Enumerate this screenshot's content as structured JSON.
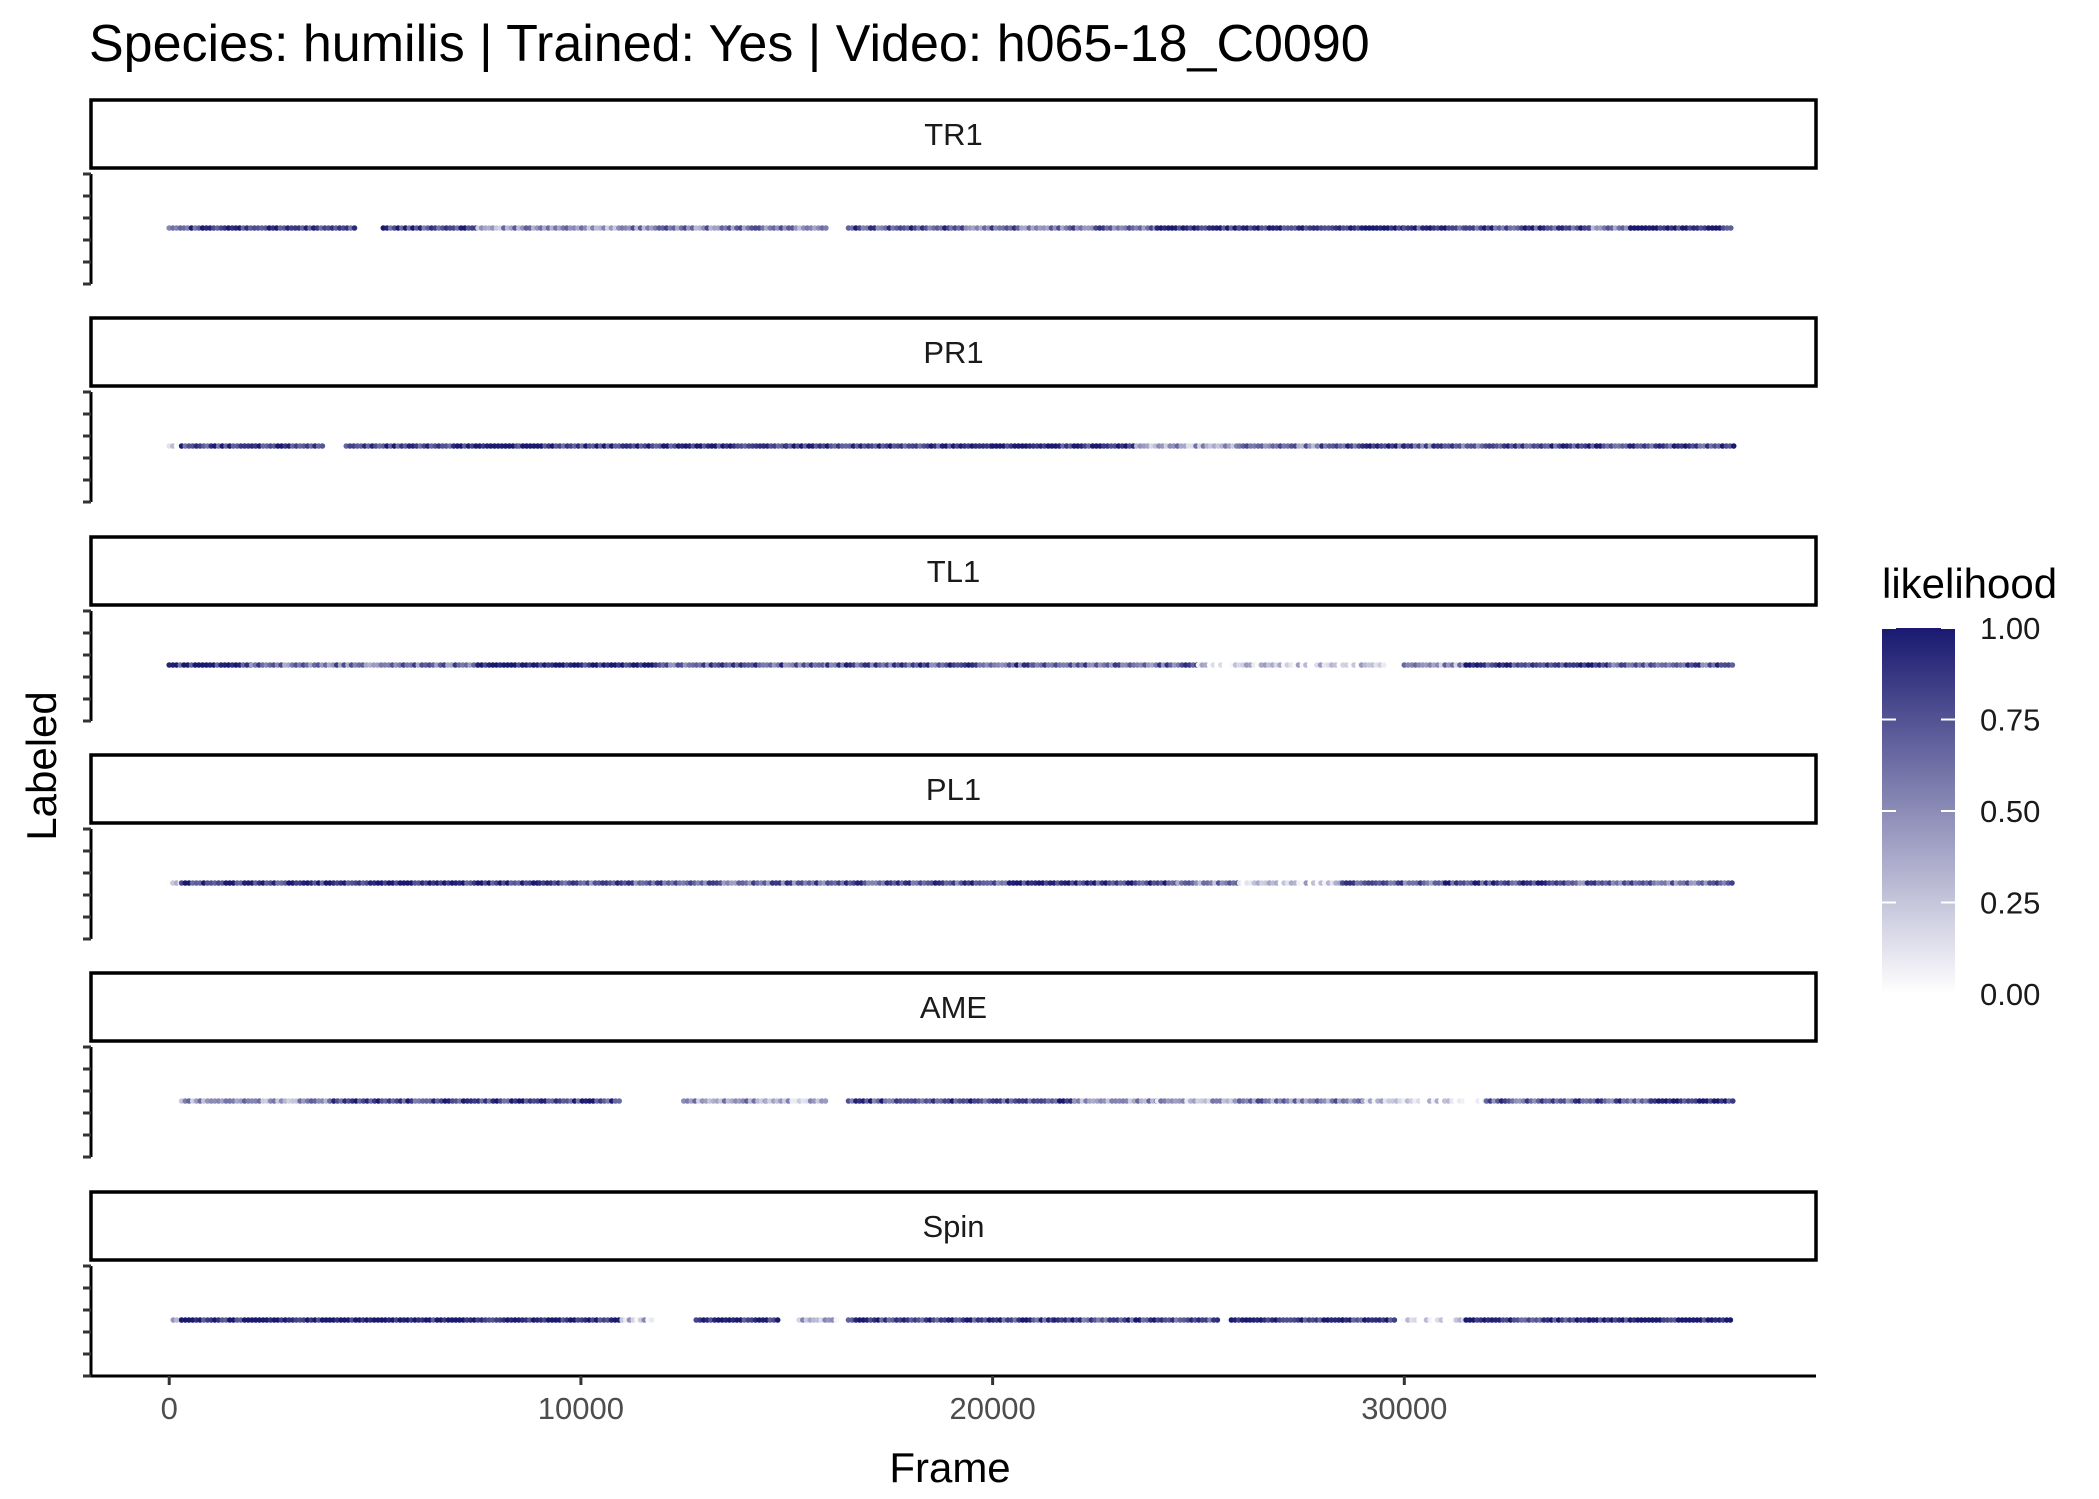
{
  "chart_data": {
    "type": "scatter",
    "title": "Species: humilis | Trained: Yes | Video: h065-18_C0090",
    "xlabel": "Frame",
    "ylabel": "Labeled",
    "xlim": [
      -1900,
      40000
    ],
    "x_ticks": [
      0,
      10000,
      20000,
      30000
    ],
    "x_tick_labels": [
      "0",
      "10000",
      "20000",
      "30000"
    ],
    "frame_range": [
      0,
      38000
    ],
    "color_scale": {
      "name": "likelihood",
      "low_color": "#ffffff",
      "high_color": "#191970",
      "range": [
        0,
        1
      ],
      "breaks": [
        0,
        0.25,
        0.5,
        0.75,
        1
      ],
      "labels": [
        "0.00",
        "0.25",
        "0.50",
        "0.75",
        "1.00"
      ]
    },
    "grid": false,
    "legend_position": "right",
    "panels": [
      {
        "label": "TR1",
        "segments": [
          [
            0,
            4500,
            0.8
          ],
          [
            5200,
            7500,
            0.82
          ],
          [
            7500,
            11000,
            0.45
          ],
          [
            11000,
            16000,
            0.55
          ],
          [
            16500,
            19000,
            0.75
          ],
          [
            19000,
            24000,
            0.62
          ],
          [
            24000,
            26000,
            0.88
          ],
          [
            26000,
            30000,
            0.95
          ],
          [
            30000,
            31500,
            0.85
          ],
          [
            31500,
            34500,
            0.8
          ],
          [
            34500,
            35500,
            0.55
          ],
          [
            35500,
            38000,
            0.95
          ]
        ]
      },
      {
        "label": "PR1",
        "segments": [
          [
            0,
            300,
            0.25
          ],
          [
            300,
            3800,
            0.85
          ],
          [
            4300,
            8500,
            0.9
          ],
          [
            8500,
            15000,
            0.88
          ],
          [
            15000,
            20000,
            0.85
          ],
          [
            20000,
            23500,
            0.9
          ],
          [
            23500,
            26000,
            0.4
          ],
          [
            26000,
            28000,
            0.55
          ],
          [
            28000,
            30000,
            0.8
          ],
          [
            30000,
            33500,
            0.7
          ],
          [
            33500,
            38000,
            0.82
          ]
        ]
      },
      {
        "label": "TL1",
        "segments": [
          [
            0,
            2000,
            0.9
          ],
          [
            2000,
            7500,
            0.6
          ],
          [
            7500,
            12000,
            0.95
          ],
          [
            12000,
            16000,
            0.7
          ],
          [
            16000,
            21000,
            0.72
          ],
          [
            21000,
            25000,
            0.65
          ],
          [
            25000,
            29500,
            0.18
          ],
          [
            30000,
            31500,
            0.45
          ],
          [
            31500,
            35000,
            0.85
          ],
          [
            35000,
            38000,
            0.7
          ]
        ]
      },
      {
        "label": "PL1",
        "segments": [
          [
            0,
            300,
            0.2
          ],
          [
            300,
            9000,
            0.9
          ],
          [
            9000,
            11500,
            0.7
          ],
          [
            11500,
            16000,
            0.65
          ],
          [
            16000,
            20500,
            0.75
          ],
          [
            20500,
            24500,
            0.85
          ],
          [
            24500,
            26000,
            0.5
          ],
          [
            26000,
            28500,
            0.2
          ],
          [
            28500,
            31000,
            0.65
          ],
          [
            31000,
            34000,
            0.8
          ],
          [
            34000,
            38000,
            0.65
          ]
        ]
      },
      {
        "label": "AME",
        "segments": [
          [
            300,
            4000,
            0.45
          ],
          [
            4000,
            11000,
            0.82
          ],
          [
            12500,
            14500,
            0.45
          ],
          [
            14500,
            16000,
            0.3
          ],
          [
            16500,
            22000,
            0.78
          ],
          [
            22000,
            24000,
            0.4
          ],
          [
            24000,
            26000,
            0.35
          ],
          [
            26000,
            29000,
            0.55
          ],
          [
            29000,
            32000,
            0.18
          ],
          [
            32000,
            36000,
            0.7
          ],
          [
            36000,
            38000,
            0.95
          ]
        ]
      },
      {
        "label": "Spin",
        "segments": [
          [
            100,
            300,
            0.4
          ],
          [
            300,
            11000,
            0.97
          ],
          [
            11000,
            11800,
            0.25
          ],
          [
            12800,
            14800,
            0.95
          ],
          [
            15300,
            16200,
            0.3
          ],
          [
            16500,
            21500,
            0.85
          ],
          [
            21500,
            25500,
            0.8
          ],
          [
            25800,
            28500,
            0.92
          ],
          [
            28500,
            29800,
            0.9
          ],
          [
            30000,
            31500,
            0.1
          ],
          [
            31500,
            34500,
            0.88
          ],
          [
            34500,
            38000,
            0.95
          ]
        ]
      }
    ]
  }
}
